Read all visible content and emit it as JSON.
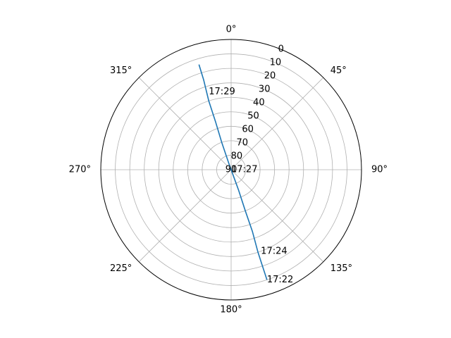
{
  "chart_data": {
    "type": "line",
    "projection": "polar",
    "theta_zero_location": "N",
    "theta_direction": "clockwise",
    "r_axis": {
      "inverted": true,
      "range": [
        90,
        0
      ],
      "label_angle_deg": 22.5
    },
    "theta_ticks": [
      "0°",
      "45°",
      "90°",
      "135°",
      "180°",
      "225°",
      "270°",
      "315°"
    ],
    "r_ticks": [
      "0",
      "10",
      "20",
      "30",
      "40",
      "50",
      "60",
      "70",
      "80",
      "90"
    ],
    "grid": true,
    "series": [
      {
        "color": "#1f77b4",
        "points": [
          {
            "theta": 162,
            "r": 10
          },
          {
            "theta": 162,
            "r": 20
          },
          {
            "theta": 162,
            "r": 30
          },
          {
            "theta": 161,
            "r": 45
          },
          {
            "theta": 161,
            "r": 60
          },
          {
            "theta": 160,
            "r": 75
          },
          {
            "theta": 160,
            "r": 87
          },
          {
            "theta": 340,
            "r": 85
          },
          {
            "theta": 341,
            "r": 70
          },
          {
            "theta": 342,
            "r": 55
          },
          {
            "theta": 342,
            "r": 40
          },
          {
            "theta": 343,
            "r": 25
          },
          {
            "theta": 343,
            "r": 14
          }
        ]
      }
    ],
    "annotations": [
      {
        "text": "17:22",
        "theta": 162,
        "r": 10
      },
      {
        "text": "17:24",
        "theta": 160,
        "r": 30
      },
      {
        "text": "17:27",
        "theta": 90,
        "r": 90
      },
      {
        "text": "17:29",
        "theta": 344,
        "r": 34
      }
    ]
  }
}
